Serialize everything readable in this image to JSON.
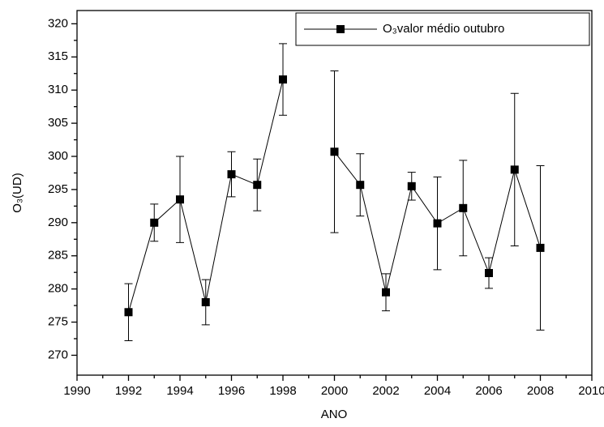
{
  "chart_data": {
    "type": "line",
    "x_label": "ANO",
    "y_label": "O₃(UD)",
    "x": [
      1992,
      1993,
      1994,
      1995,
      1996,
      1997,
      1998,
      1999,
      2000,
      2001,
      2002,
      2003,
      2004,
      2005,
      2006,
      2007,
      2008
    ],
    "series": [
      {
        "name": "O₃valor médio outubro",
        "color": "#000000",
        "values": [
          276.5,
          290,
          293.5,
          278,
          297.3,
          295.7,
          311.6,
          null,
          300.7,
          295.7,
          279.5,
          295.5,
          289.9,
          292.2,
          282.4,
          298,
          286.2
        ],
        "errors": [
          4.3,
          2.8,
          6.5,
          3.4,
          3.4,
          3.9,
          5.4,
          null,
          12.2,
          4.7,
          2.8,
          2.1,
          7,
          7.2,
          2.3,
          11.5,
          12.4
        ]
      }
    ],
    "xlim": [
      1990,
      2010
    ],
    "xticks": [
      1990,
      1992,
      1994,
      1996,
      1998,
      2000,
      2002,
      2004,
      2006,
      2008,
      2010
    ],
    "ylim": [
      267,
      322
    ],
    "yticks": [
      270,
      275,
      280,
      285,
      290,
      295,
      300,
      305,
      310,
      315,
      320
    ],
    "grid": false,
    "legend": "upper right"
  }
}
